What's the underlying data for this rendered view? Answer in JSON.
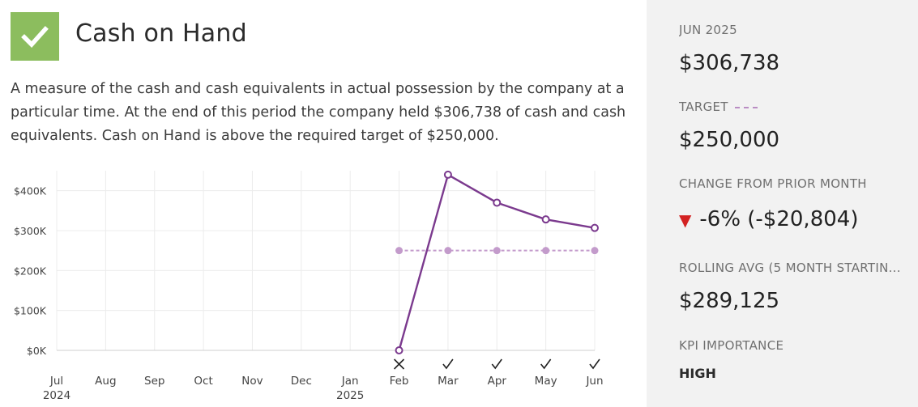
{
  "kpi": {
    "title": "Cash on Hand",
    "status_icon": "checkmark-icon",
    "status_color": "#8cbd5e",
    "description": "A measure of the cash and cash equivalents in actual possession by the company at a particular time. At the end of this period the company held $306,738 of cash and cash equivalents. Cash on Hand is above the required target of $250,000."
  },
  "side": {
    "period_label": "JUN 2025",
    "period_value": "$306,738",
    "target_label": "TARGET",
    "target_value": "$250,000",
    "change_label": "CHANGE FROM PRIOR MONTH",
    "change_value": "-6% (-$20,804)",
    "change_direction": "down",
    "rolling_label": "ROLLING AVG (5 MONTH STARTIN...",
    "rolling_value": "$289,125",
    "importance_label": "KPI IMPORTANCE",
    "importance_value": "HIGH"
  },
  "chart_data": {
    "type": "line",
    "categories": [
      "Jul",
      "Aug",
      "Sep",
      "Oct",
      "Nov",
      "Dec",
      "Jan",
      "Feb",
      "Mar",
      "Apr",
      "May",
      "Jun"
    ],
    "year_labels": [
      {
        "index": 0,
        "label": "2024"
      },
      {
        "index": 6,
        "label": "2025"
      }
    ],
    "y_ticks": [
      "$0K",
      "$100K",
      "$200K",
      "$300K",
      "$400K"
    ],
    "ylim": [
      0,
      450000
    ],
    "series": [
      {
        "key": "actual",
        "color": "#7b3a8e",
        "values": [
          null,
          null,
          null,
          null,
          null,
          null,
          null,
          0,
          440000,
          370000,
          328000,
          306738
        ]
      },
      {
        "key": "target",
        "color": "#c39bcb",
        "dashed": true,
        "values": [
          null,
          null,
          null,
          null,
          null,
          null,
          null,
          250000,
          250000,
          250000,
          250000,
          250000
        ]
      }
    ],
    "status_marks": [
      null,
      null,
      null,
      null,
      null,
      null,
      null,
      "cross",
      "check",
      "check",
      "check",
      "check"
    ],
    "grid": true
  }
}
